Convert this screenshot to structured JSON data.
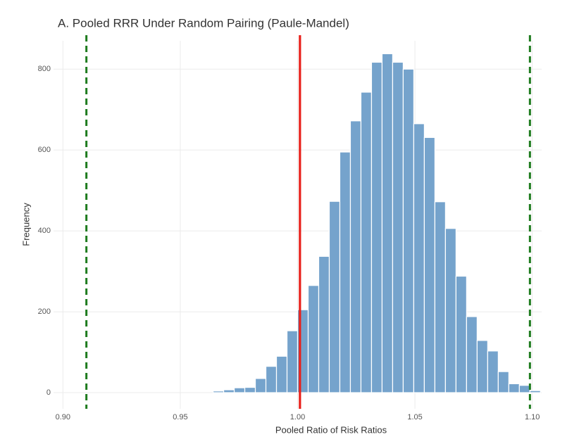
{
  "chart_data": {
    "type": "histogram",
    "title": "A. Pooled RRR Under Random Pairing (Paule-Mandel)",
    "x_label": "Pooled Ratio of Risk Ratios",
    "y_label": "Frequency",
    "bins": [
      0.964,
      0.9685,
      0.973,
      0.9775,
      0.982,
      0.9865,
      0.991,
      0.9955,
      1.0,
      1.0045,
      1.009,
      1.0135,
      1.018,
      1.0225,
      1.027,
      1.0315,
      1.036,
      1.0405,
      1.045,
      1.0495,
      1.054,
      1.0585,
      1.063,
      1.0675,
      1.072,
      1.0765,
      1.081,
      1.0855,
      1.09,
      1.0945,
      1.099,
      1.1035
    ],
    "values": [
      4,
      7,
      12,
      13,
      35,
      65,
      90,
      153,
      205,
      265,
      337,
      473,
      595,
      672,
      743,
      817,
      838,
      817,
      800,
      665,
      631,
      472,
      406,
      288,
      188,
      129,
      103,
      52,
      22,
      18,
      5
    ],
    "color": "#75a3cc",
    "xlim": [
      0.896,
      1.104
    ],
    "ylim": [
      -40,
      870
    ],
    "xticks": [
      {
        "value": 0.9,
        "label": "0.90"
      },
      0.95,
      {
        "value": 1.0,
        "label": "1.00"
      },
      1.05,
      {
        "value": 1.1,
        "label": "1.10"
      }
    ],
    "yticks": [
      0,
      200,
      400,
      600,
      800
    ],
    "grid": true,
    "reference_lines": [
      {
        "value": 0.91,
        "color": "#1e7b1e",
        "dashed": true
      },
      {
        "value": 1.001,
        "color": "#e8201a",
        "dashed": false
      },
      {
        "value": 1.099,
        "color": "#1e7b1e",
        "dashed": true
      }
    ]
  }
}
